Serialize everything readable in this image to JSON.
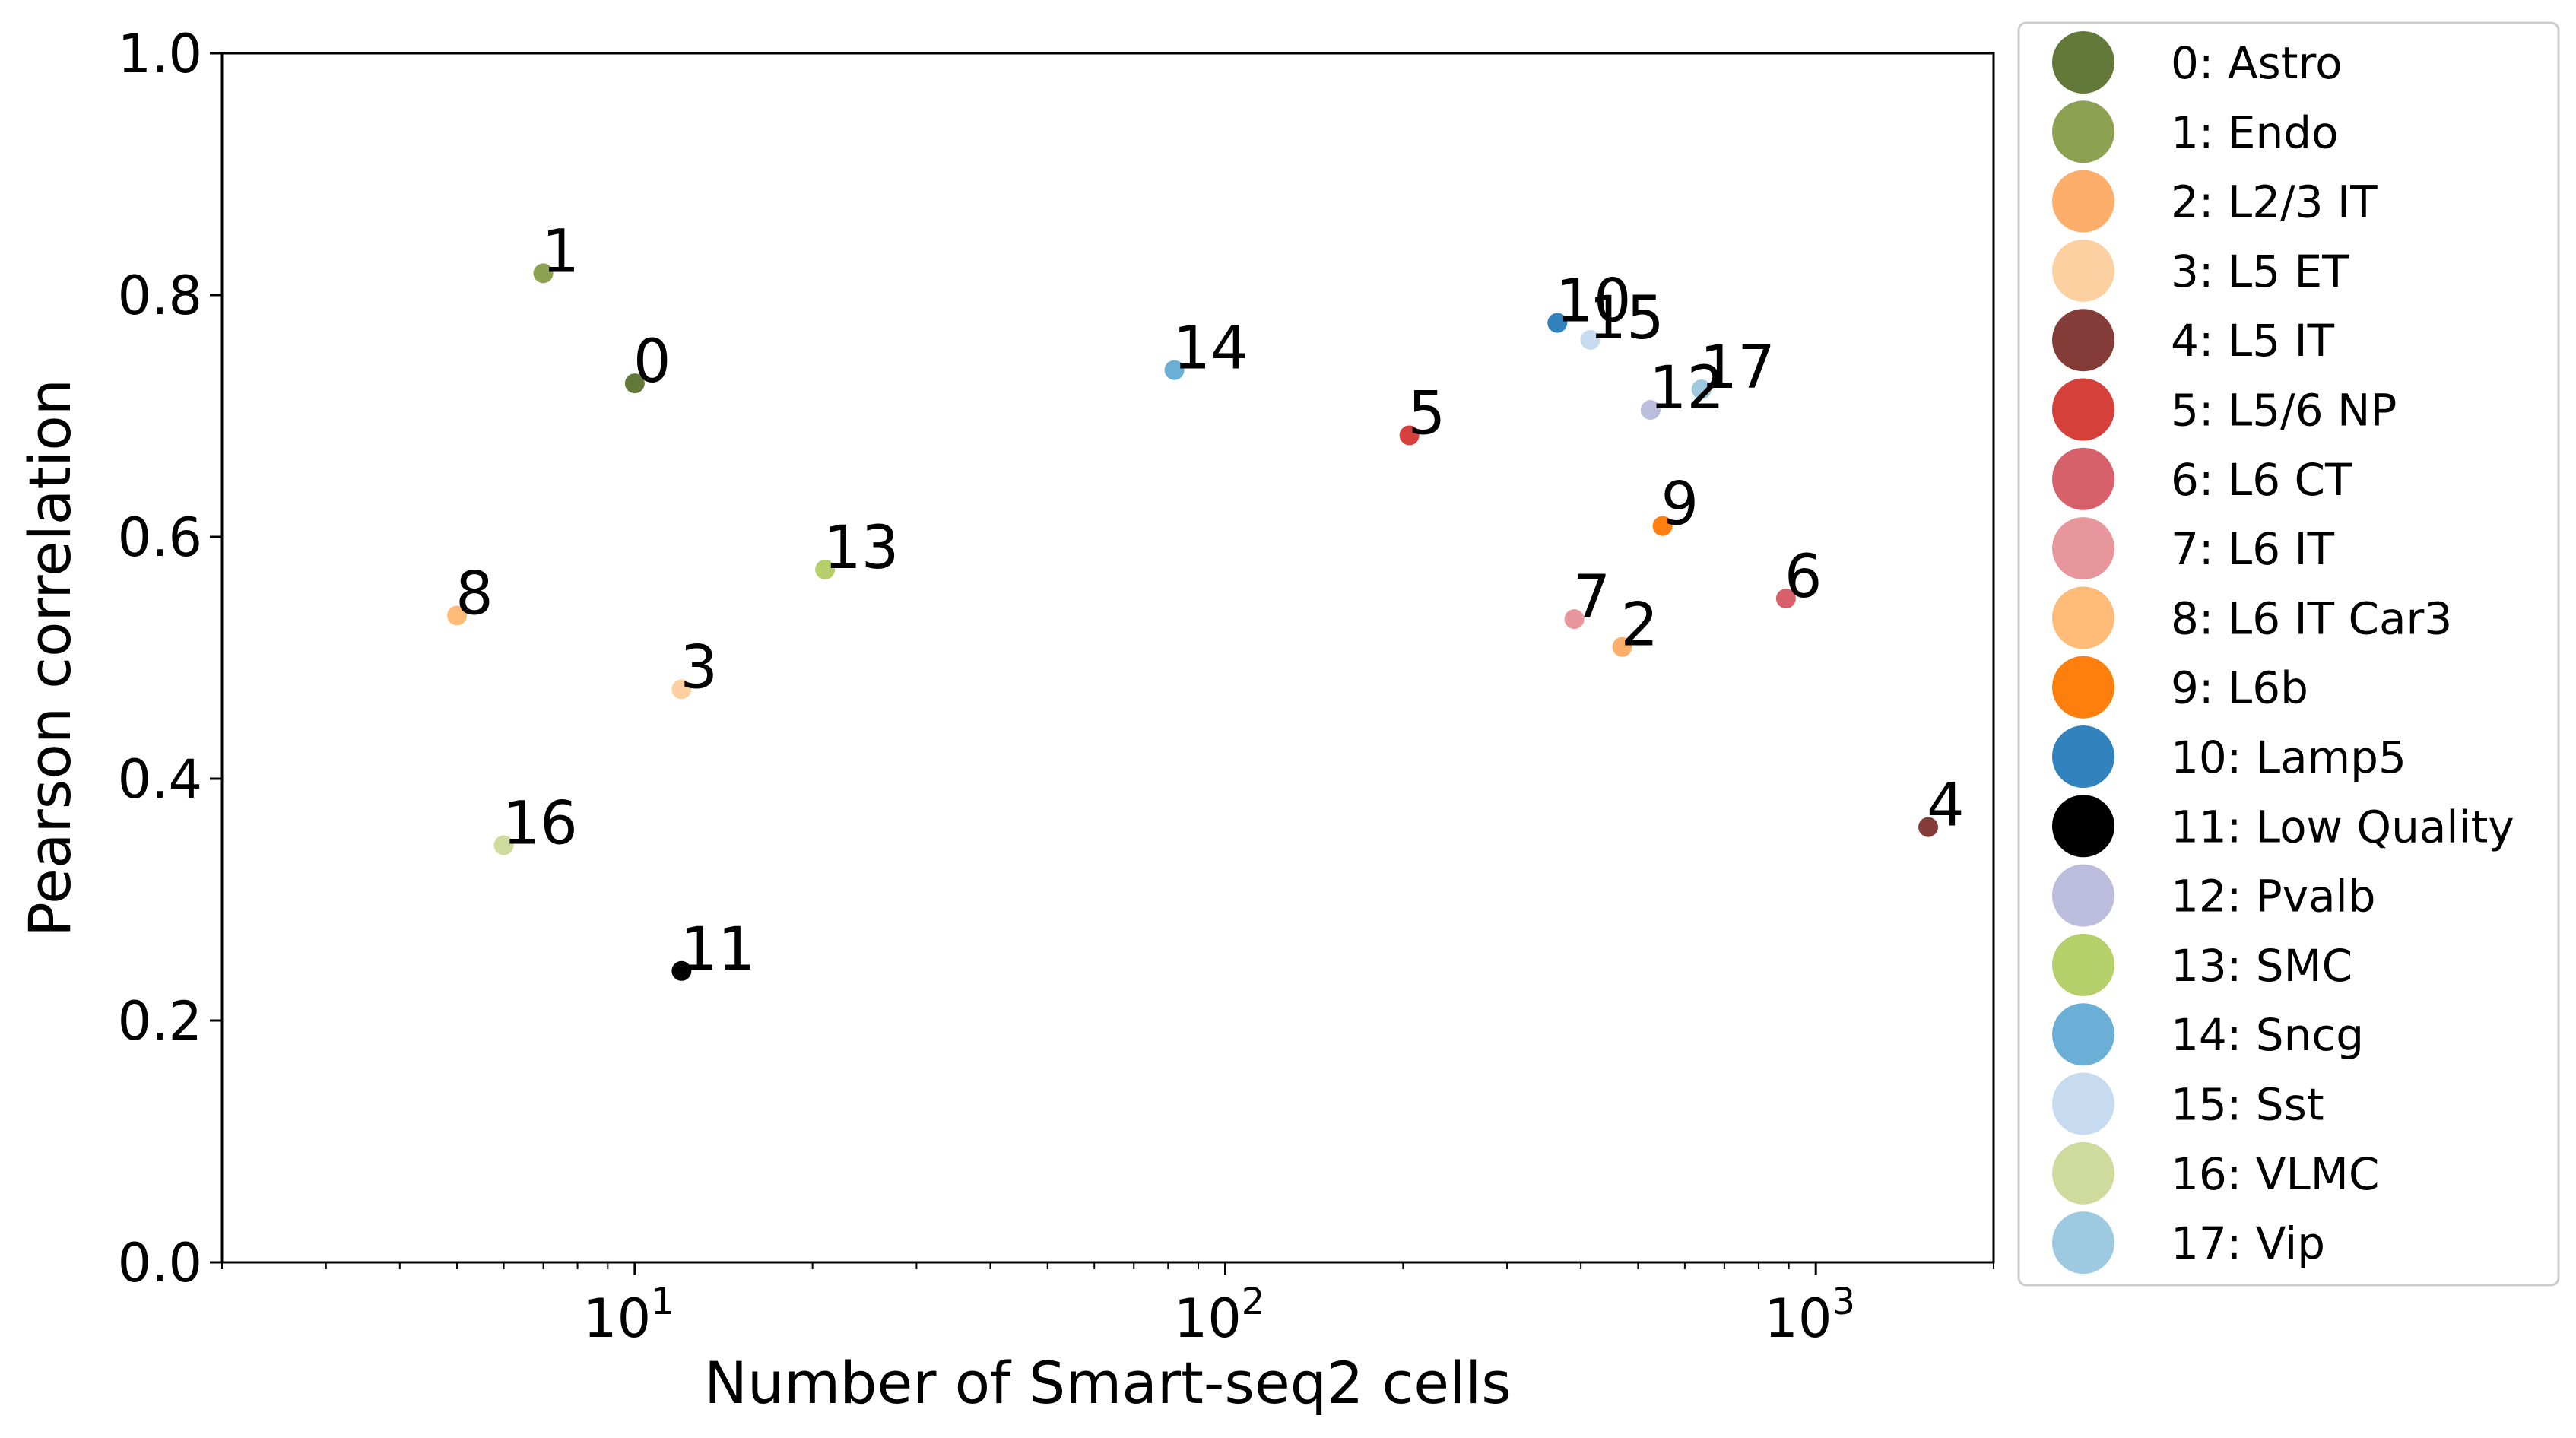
{
  "chart_data": {
    "type": "scatter",
    "xlabel": "Number of Smart-seq2 cells",
    "ylabel": "Pearson correlation",
    "x_scale": "log",
    "xlim": [
      2,
      2000
    ],
    "ylim": [
      0.0,
      1.0
    ],
    "y_ticks": [
      "0.0",
      "0.2",
      "0.4",
      "0.6",
      "0.8",
      "1.0"
    ],
    "x_ticks": [
      {
        "value": 10,
        "base": "10",
        "exp": "1"
      },
      {
        "value": 100,
        "base": "10",
        "exp": "2"
      },
      {
        "value": 1000,
        "base": "10",
        "exp": "3"
      }
    ],
    "grid": false,
    "legend_position": "outside-right",
    "points": [
      {
        "label": "0",
        "name": "0: Astro",
        "x": 10,
        "y": 0.727,
        "color": "#637939"
      },
      {
        "label": "1",
        "name": "1: Endo",
        "x": 7,
        "y": 0.818,
        "color": "#8ca252"
      },
      {
        "label": "2",
        "name": "2: L2/3 IT",
        "x": 470,
        "y": 0.509,
        "color": "#fdae6b"
      },
      {
        "label": "3",
        "name": "3: L5 ET",
        "x": 12,
        "y": 0.474,
        "color": "#fdd0a2"
      },
      {
        "label": "4",
        "name": "4: L5 IT",
        "x": 1550,
        "y": 0.36,
        "color": "#843c39"
      },
      {
        "label": "5",
        "name": "5: L5/6 NP",
        "x": 205,
        "y": 0.684,
        "color": "#d6403a"
      },
      {
        "label": "6",
        "name": "6: L6 CT",
        "x": 890,
        "y": 0.549,
        "color": "#d6616b"
      },
      {
        "label": "7",
        "name": "7: L6 IT",
        "x": 390,
        "y": 0.532,
        "color": "#e7969c"
      },
      {
        "label": "8",
        "name": "8: L6 IT Car3",
        "x": 5,
        "y": 0.535,
        "color": "#ffbb78"
      },
      {
        "label": "9",
        "name": "9: L6b",
        "x": 550,
        "y": 0.609,
        "color": "#ff7f0e"
      },
      {
        "label": "10",
        "name": "10: Lamp5",
        "x": 365,
        "y": 0.777,
        "color": "#3182bd"
      },
      {
        "label": "11",
        "name": "11: Low Quality",
        "x": 12,
        "y": 0.241,
        "color": "#000000"
      },
      {
        "label": "12",
        "name": "12: Pvalb",
        "x": 525,
        "y": 0.705,
        "color": "#bcbddc"
      },
      {
        "label": "13",
        "name": "13: SMC",
        "x": 21,
        "y": 0.573,
        "color": "#b5cf6b"
      },
      {
        "label": "14",
        "name": "14: Sncg",
        "x": 82,
        "y": 0.738,
        "color": "#6baed6"
      },
      {
        "label": "15",
        "name": "15: Sst",
        "x": 415,
        "y": 0.763,
        "color": "#c6dbef"
      },
      {
        "label": "16",
        "name": "16: VLMC",
        "x": 6,
        "y": 0.345,
        "color": "#cedb9c"
      },
      {
        "label": "17",
        "name": "17: Vip",
        "x": 640,
        "y": 0.722,
        "color": "#9ecae1"
      }
    ]
  }
}
